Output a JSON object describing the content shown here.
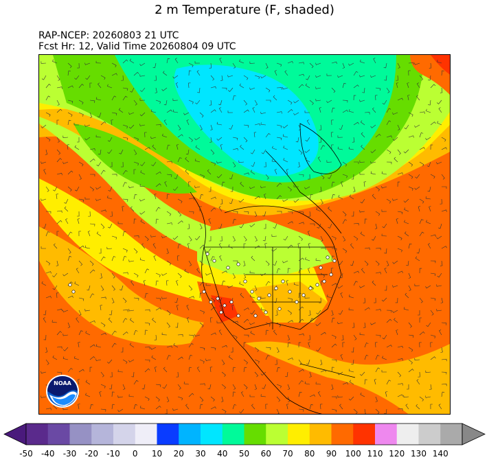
{
  "title": "2 m Temperature (F, shaded)",
  "run_info": "RAP-NCEP: 20260803 21 UTC",
  "valid_info": "Fcst Hr: 12, Valid Time 20260804 09 UTC",
  "logo_text": "NOAA",
  "colorbar": {
    "ticks": [
      "-50",
      "-40",
      "-30",
      "-20",
      "-10",
      "0",
      "10",
      "20",
      "30",
      "40",
      "50",
      "60",
      "70",
      "80",
      "90",
      "100",
      "110",
      "120",
      "130",
      "140"
    ],
    "colors": [
      "#5a2a8c",
      "#6a49a4",
      "#9691c4",
      "#b5b5da",
      "#d4d4ea",
      "#efeef8",
      "#0a3cff",
      "#00b4ff",
      "#00e6ff",
      "#00fa9a",
      "#66dd00",
      "#bbff33",
      "#ffee00",
      "#ffbb00",
      "#ff6a00",
      "#ff3300",
      "#ee88ee",
      "#eeeeee",
      "#cccccc",
      "#aaaaaa"
    ],
    "under_color": "#4a1a7c",
    "over_color": "#888888"
  }
}
